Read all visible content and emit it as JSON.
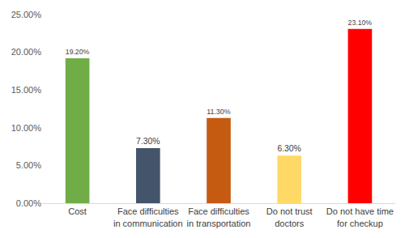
{
  "chart_data": {
    "type": "bar",
    "categories": [
      "Cost",
      "Face difficulties\nin communication",
      "Face difficulties\nin transportation",
      "Do not trust\ndoctors",
      "Do not have time\nfor checkup"
    ],
    "values": [
      19.2,
      7.3,
      11.3,
      6.3,
      23.1
    ],
    "value_labels": [
      "19.20%",
      "7.30%",
      "11.30%",
      "6.30%",
      "23.10%"
    ],
    "colors": [
      "#70ad47",
      "#44546a",
      "#c55a11",
      "#ffd966",
      "#ff0000"
    ],
    "data_labels": true,
    "ylim": [
      0,
      25
    ],
    "yticks": [
      {
        "value": 0,
        "label": "0.00%"
      },
      {
        "value": 5,
        "label": "5.00%"
      },
      {
        "value": 10,
        "label": "10.00%"
      },
      {
        "value": 15,
        "label": "15.00%"
      },
      {
        "value": 20,
        "label": "20.00%"
      },
      {
        "value": 25,
        "label": "25.00%"
      }
    ],
    "grid": false
  }
}
